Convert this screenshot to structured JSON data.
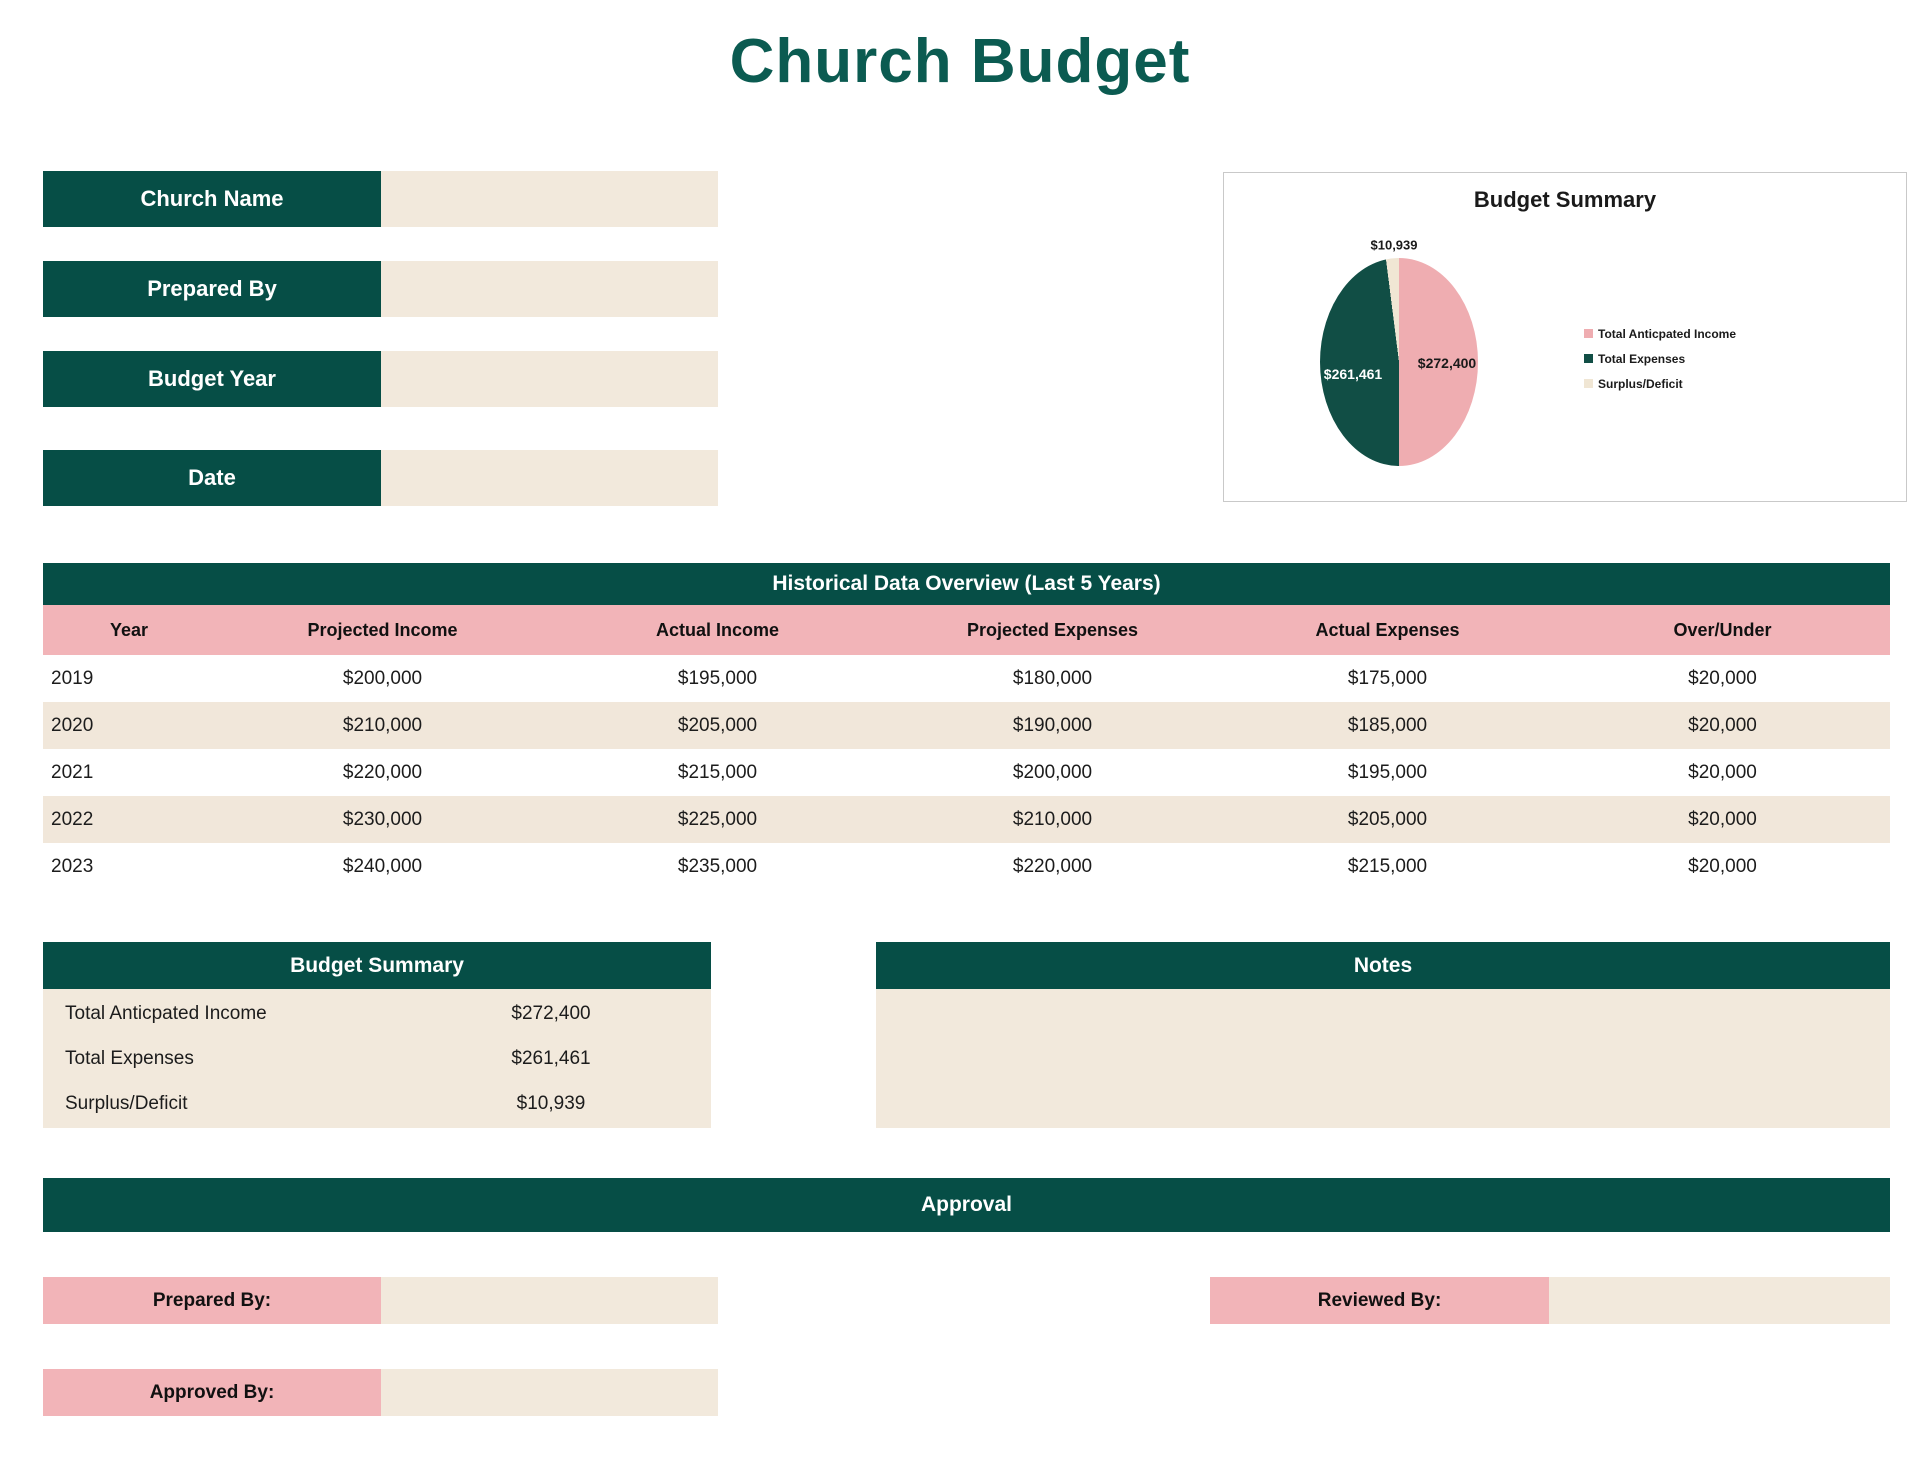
{
  "title": "Church Budget",
  "form": {
    "fields": [
      {
        "label": "Church Name",
        "value": ""
      },
      {
        "label": "Prepared By",
        "value": ""
      },
      {
        "label": "Budget Year",
        "value": ""
      },
      {
        "label": "Date",
        "value": ""
      }
    ]
  },
  "chart": {
    "title": "Budget Summary",
    "chart_data": {
      "type": "pie",
      "title": "Budget Summary",
      "slices": [
        {
          "label": "Total Anticpated Income",
          "value": 272400,
          "display": "$272,400",
          "color": "#EFADB1"
        },
        {
          "label": "Total Expenses",
          "value": 261461,
          "display": "$261,461",
          "color": "#114E45"
        },
        {
          "label": "Surplus/Deficit",
          "value": 10939,
          "display": "$10,939",
          "color": "#F0E6D4"
        }
      ],
      "legend_position": "right",
      "start_angle_deg": 0,
      "direction": "clockwise"
    }
  },
  "historical": {
    "title": "Historical Data Overview (Last 5 Years)",
    "columns": [
      "Year",
      "Projected Income",
      "Actual Income",
      "Projected Expenses",
      "Actual Expenses",
      "Over/Under"
    ],
    "rows": [
      [
        "2019",
        "$200,000",
        "$195,000",
        "$180,000",
        "$175,000",
        "$20,000"
      ],
      [
        "2020",
        "$210,000",
        "$205,000",
        "$190,000",
        "$185,000",
        "$20,000"
      ],
      [
        "2021",
        "$220,000",
        "$215,000",
        "$200,000",
        "$195,000",
        "$20,000"
      ],
      [
        "2022",
        "$230,000",
        "$225,000",
        "$210,000",
        "$205,000",
        "$20,000"
      ],
      [
        "2023",
        "$240,000",
        "$235,000",
        "$220,000",
        "$215,000",
        "$20,000"
      ]
    ]
  },
  "budget_summary": {
    "title": "Budget Summary",
    "rows": [
      {
        "label": "Total Anticpated Income",
        "value": "$272,400"
      },
      {
        "label": "Total Expenses",
        "value": "$261,461"
      },
      {
        "label": "Surplus/Deficit",
        "value": "$10,939"
      }
    ]
  },
  "notes": {
    "title": "Notes",
    "content": ""
  },
  "approval": {
    "title": "Approval",
    "prepared_by_label": "Prepared By:",
    "reviewed_by_label": "Reviewed By:",
    "approved_by_label": "Approved By:",
    "prepared_by_value": "",
    "reviewed_by_value": "",
    "approved_by_value": ""
  },
  "colors": {
    "teal_header": "#064E46",
    "teal_title": "#0B5B51",
    "pink": "#F2B4B8",
    "beige": "#F2E9DC",
    "pie_pink": "#EFADB1",
    "pie_teal": "#114E45",
    "pie_beige": "#F0E6D4",
    "card_border": "#C9C9C9"
  }
}
